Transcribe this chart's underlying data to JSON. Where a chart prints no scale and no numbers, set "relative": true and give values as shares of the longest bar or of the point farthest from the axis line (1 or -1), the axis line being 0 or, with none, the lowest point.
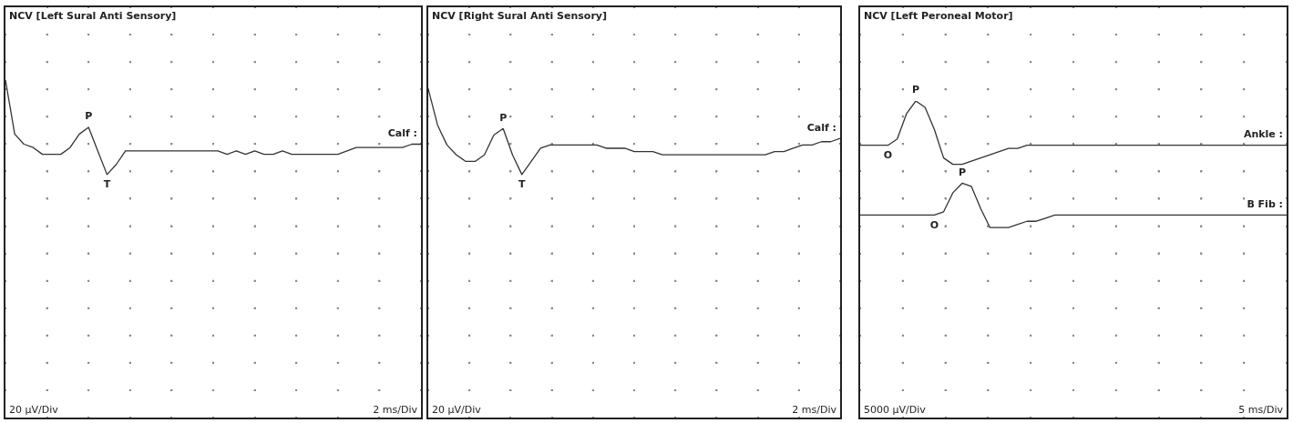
{
  "chart_data": [
    {
      "type": "line",
      "title": "NCV [Left Sural Anti Sensory]",
      "relative": true,
      "grid": true,
      "marker": "none",
      "tick_labels": false,
      "categories": [
        null,
        null,
        null,
        null,
        null,
        null,
        null,
        null,
        null,
        null,
        null,
        null,
        null,
        null,
        null,
        null,
        null,
        null,
        null,
        null,
        null,
        null,
        null,
        null,
        null,
        null,
        null,
        null,
        null,
        null,
        null,
        null,
        null,
        null,
        null,
        null,
        null,
        null,
        null,
        null,
        null,
        null,
        null,
        null,
        null,
        null
      ],
      "series": [
        {
          "name": "Calf :",
          "color": "#333333",
          "values": [
            1.0,
            0.84,
            0.81,
            0.8,
            0.78,
            0.78,
            0.78,
            0.8,
            0.84,
            0.86,
            0.79,
            0.72,
            0.75,
            0.79,
            0.79,
            0.79,
            0.79,
            0.79,
            0.79,
            0.79,
            0.79,
            0.79,
            0.79,
            0.79,
            0.78,
            0.79,
            0.78,
            0.79,
            0.78,
            0.78,
            0.79,
            0.78,
            0.78,
            0.78,
            0.78,
            0.78,
            0.78,
            0.79,
            0.8,
            0.8,
            0.8,
            0.8,
            0.8,
            0.8,
            0.81,
            0.81
          ]
        }
      ],
      "annotations": [
        "P",
        "T",
        "20 µV/Div",
        "2 ms/Div"
      ]
    },
    {
      "type": "line",
      "title": "NCV [Right Sural Anti Sensory]",
      "relative": true,
      "grid": true,
      "marker": "none",
      "tick_labels": false,
      "categories": [
        null,
        null,
        null,
        null,
        null,
        null,
        null,
        null,
        null,
        null,
        null,
        null,
        null,
        null,
        null,
        null,
        null,
        null,
        null,
        null,
        null,
        null,
        null,
        null,
        null,
        null,
        null,
        null,
        null,
        null,
        null,
        null,
        null,
        null,
        null,
        null,
        null,
        null,
        null,
        null,
        null,
        null,
        null,
        null,
        null
      ],
      "series": [
        {
          "name": "Calf :",
          "color": "#333333",
          "values": [
            1.0,
            0.89,
            0.83,
            0.8,
            0.78,
            0.78,
            0.8,
            0.86,
            0.88,
            0.8,
            0.74,
            0.78,
            0.82,
            0.83,
            0.83,
            0.83,
            0.83,
            0.83,
            0.83,
            0.82,
            0.82,
            0.82,
            0.81,
            0.81,
            0.81,
            0.8,
            0.8,
            0.8,
            0.8,
            0.8,
            0.8,
            0.8,
            0.8,
            0.8,
            0.8,
            0.8,
            0.8,
            0.81,
            0.81,
            0.82,
            0.83,
            0.83,
            0.84,
            0.84,
            0.85
          ]
        }
      ],
      "annotations": [
        "P",
        "T",
        "20 µV/Div",
        "2 ms/Div"
      ]
    },
    {
      "type": "line",
      "title": "NCV [Left Peroneal Motor]",
      "relative": true,
      "grid": true,
      "marker": "none",
      "tick_labels": false,
      "categories": [
        null,
        null,
        null,
        null,
        null,
        null,
        null,
        null,
        null,
        null,
        null,
        null,
        null,
        null,
        null,
        null,
        null,
        null,
        null,
        null,
        null,
        null,
        null,
        null,
        null,
        null,
        null,
        null,
        null,
        null,
        null,
        null,
        null,
        null,
        null,
        null,
        null,
        null,
        null,
        null,
        null,
        null,
        null,
        null,
        null,
        null,
        null
      ],
      "series": [
        {
          "name": "Ankle :",
          "color": "#333333",
          "values": [
            0.86,
            0.86,
            0.86,
            0.86,
            0.88,
            0.96,
            1.0,
            0.98,
            0.91,
            0.82,
            0.8,
            0.8,
            0.81,
            0.82,
            0.83,
            0.84,
            0.85,
            0.85,
            0.86,
            0.86,
            0.86,
            0.86,
            0.86,
            0.86,
            0.86,
            0.86,
            0.86,
            0.86,
            0.86,
            0.86,
            0.86,
            0.86,
            0.86,
            0.86,
            0.86,
            0.86,
            0.86,
            0.86,
            0.86,
            0.86,
            0.86,
            0.86,
            0.86,
            0.86,
            0.86,
            0.86,
            0.86
          ]
        },
        {
          "name": "B Fib :",
          "color": "#333333",
          "values": [
            0.64,
            0.64,
            0.64,
            0.64,
            0.64,
            0.64,
            0.64,
            0.64,
            0.64,
            0.65,
            0.71,
            0.74,
            0.73,
            0.66,
            0.6,
            0.6,
            0.6,
            0.61,
            0.62,
            0.62,
            0.63,
            0.64,
            0.64,
            0.64,
            0.64,
            0.64,
            0.64,
            0.64,
            0.64,
            0.64,
            0.64,
            0.64,
            0.64,
            0.64,
            0.64,
            0.64,
            0.64,
            0.64,
            0.64,
            0.64,
            0.64,
            0.64,
            0.64,
            0.64,
            0.64,
            0.64,
            0.64
          ]
        }
      ],
      "annotations": [
        "P",
        "O",
        "P",
        "O",
        "5000 µV/Div",
        "5 ms/Div"
      ]
    }
  ]
}
